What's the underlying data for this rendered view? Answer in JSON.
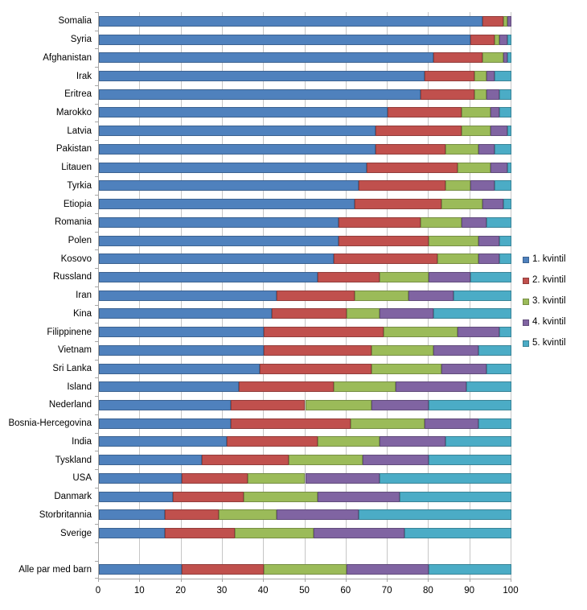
{
  "chart_data": {
    "type": "bar",
    "orientation": "horizontal",
    "stacked": true,
    "unit": "percent",
    "title": "",
    "xlabel": "",
    "ylabel": "",
    "xlim": [
      0,
      100
    ],
    "x_ticks": [
      0,
      10,
      20,
      30,
      40,
      50,
      60,
      70,
      80,
      90,
      100
    ],
    "grid": true,
    "legend_position": "right",
    "gap_before_last_category": true,
    "categories": [
      "Somalia",
      "Syria",
      "Afghanistan",
      "Irak",
      "Eritrea",
      "Marokko",
      "Latvia",
      "Pakistan",
      "Litauen",
      "Tyrkia",
      "Etiopia",
      "Romania",
      "Polen",
      "Kosovo",
      "Russland",
      "Iran",
      "Kina",
      "Filippinene",
      "Vietnam",
      "Sri Lanka",
      "Island",
      "Nederland",
      "Bosnia-Hercegovina",
      "India",
      "Tyskland",
      "USA",
      "Danmark",
      "Storbritannia",
      "Sverige",
      "Alle par med barn"
    ],
    "series": [
      {
        "name": "1. kvintil",
        "color": "#4F81BD",
        "values": [
          93,
          90,
          81,
          79,
          78,
          70,
          67,
          67,
          65,
          63,
          62,
          58,
          58,
          57,
          53,
          43,
          42,
          40,
          40,
          39,
          34,
          32,
          32,
          31,
          25,
          20,
          18,
          16,
          16,
          20
        ]
      },
      {
        "name": "2. kvintil",
        "color": "#C0504D",
        "values": [
          5,
          6,
          12,
          12,
          13,
          18,
          21,
          17,
          22,
          21,
          21,
          20,
          22,
          25,
          15,
          19,
          18,
          29,
          26,
          27,
          23,
          18,
          29,
          22,
          21,
          16,
          17,
          13,
          17,
          20
        ]
      },
      {
        "name": "3. kvintil",
        "color": "#9BBB59",
        "values": [
          1,
          1,
          5,
          3,
          3,
          7,
          7,
          8,
          8,
          6,
          10,
          10,
          12,
          10,
          12,
          13,
          8,
          18,
          15,
          17,
          15,
          16,
          18,
          15,
          18,
          14,
          18,
          14,
          19,
          20
        ]
      },
      {
        "name": "4. kvintil",
        "color": "#8064A2",
        "values": [
          1,
          2,
          1,
          2,
          3,
          2,
          4,
          4,
          4,
          6,
          5,
          6,
          5,
          5,
          10,
          11,
          13,
          10,
          11,
          11,
          17,
          14,
          13,
          16,
          16,
          18,
          20,
          20,
          22,
          20
        ]
      },
      {
        "name": "5. kvintil",
        "color": "#4BACC6",
        "values": [
          0,
          1,
          1,
          4,
          3,
          3,
          1,
          4,
          1,
          4,
          2,
          6,
          3,
          3,
          10,
          14,
          19,
          3,
          8,
          6,
          11,
          20,
          8,
          16,
          20,
          32,
          27,
          37,
          26,
          20
        ]
      }
    ]
  },
  "legend": {
    "items": [
      "1. kvintil",
      "2. kvintil",
      "3. kvintil",
      "4. kvintil",
      "5. kvintil"
    ]
  },
  "colors": {
    "grid": "#C6C6C6",
    "axis": "#A6A6A6",
    "text": "#000000",
    "background": "#FFFFFF"
  }
}
